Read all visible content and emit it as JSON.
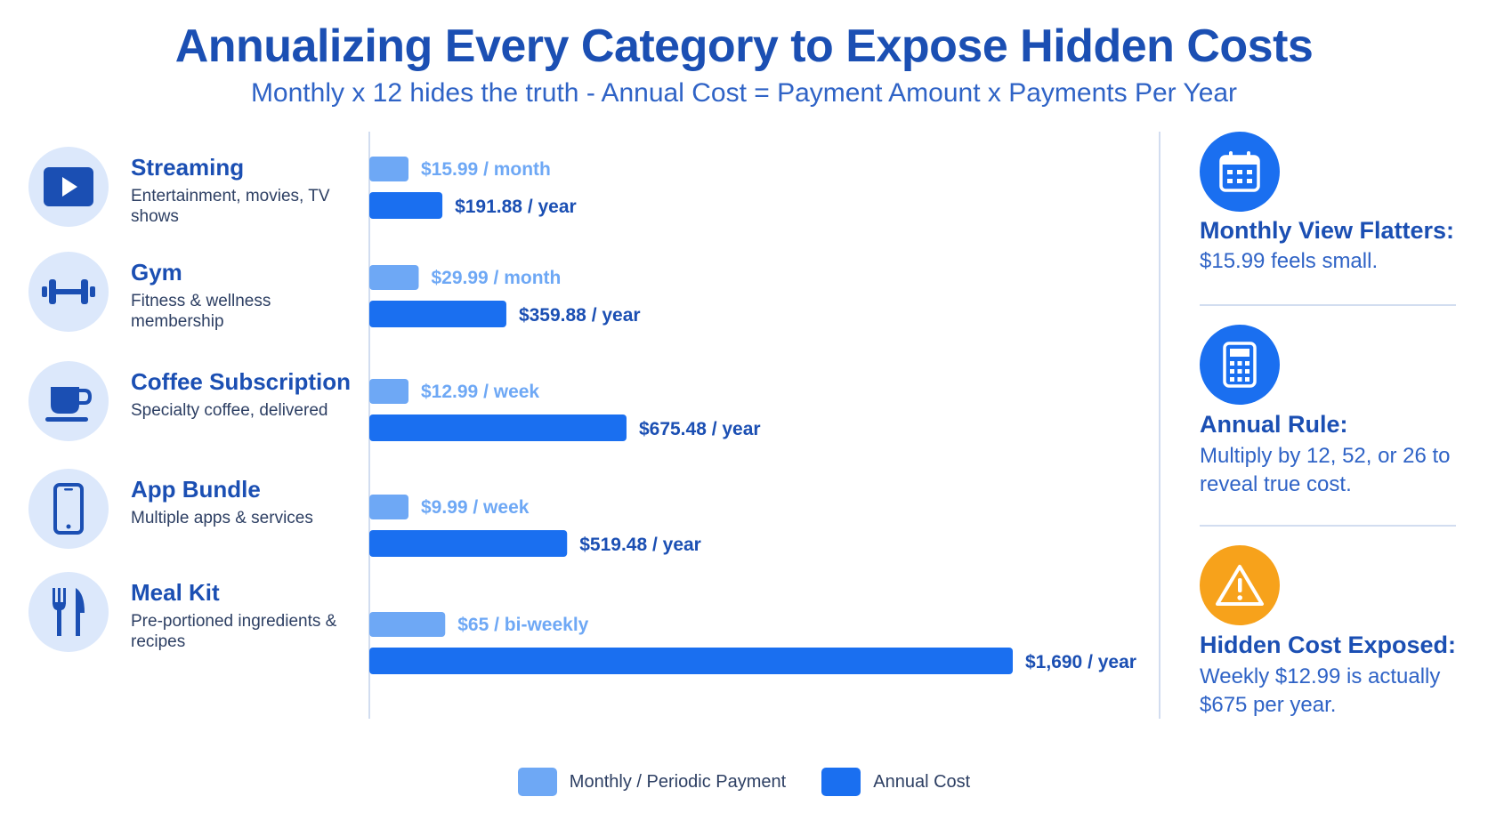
{
  "title": "Annualizing Every Category to Expose Hidden Costs",
  "subtitle": "Monthly x 12 hides the truth - Annual Cost = Payment Amount x Payments Per Year",
  "colors": {
    "periodic": "#6ea8f5",
    "annual": "#1a6ff0",
    "heading": "#1b4fb3",
    "accent_icon": "#1a6ff0",
    "warning": "#f7a21b"
  },
  "categories": [
    {
      "name": "Streaming",
      "desc": "Entertainment, movies, TV shows",
      "icon": "play-icon"
    },
    {
      "name": "Gym",
      "desc": "Fitness & wellness membership",
      "icon": "dumbbell-icon"
    },
    {
      "name": "Coffee Subscription",
      "desc": "Specialty coffee, delivered",
      "icon": "coffee-cup-icon"
    },
    {
      "name": "App Bundle",
      "desc": "Multiple apps & services",
      "icon": "smartphone-icon"
    },
    {
      "name": "Meal Kit",
      "desc": "Pre-portioned ingredients & recipes",
      "icon": "fork-knife-icon"
    }
  ],
  "chart_data": {
    "type": "bar",
    "orientation": "horizontal",
    "title": "Annualizing Every Category to Expose Hidden Costs",
    "categories": [
      "Streaming",
      "Gym",
      "Coffee Subscription",
      "App Bundle",
      "Meal Kit"
    ],
    "series": [
      {
        "name": "Monthly / Periodic Payment",
        "values": [
          15.99,
          29.99,
          12.99,
          9.99,
          65
        ],
        "labels": [
          "$15.99 / month",
          "$29.99 / month",
          "$12.99 / week",
          "$9.99 / week",
          "$65 / bi-weekly"
        ]
      },
      {
        "name": "Annual Cost",
        "values": [
          191.88,
          359.88,
          675.48,
          519.48,
          1690
        ],
        "labels": [
          "$191.88 / year",
          "$359.88 / year",
          "$675.48 / year",
          "$519.48 / year",
          "$1,690 / year"
        ]
      }
    ],
    "legend_position": "bottom-center",
    "grid": false
  },
  "sidebar": [
    {
      "icon": "calendar-icon",
      "title": "Monthly View Flatters:",
      "text": "$15.99 feels small."
    },
    {
      "icon": "calculator-icon",
      "title": "Annual Rule:",
      "text": "Multiply by 12, 52, or 26 to reveal true cost."
    },
    {
      "icon": "warning-icon",
      "title": "Hidden Cost Exposed:",
      "text": "Weekly $12.99 is actually $675 per year."
    }
  ],
  "legend": [
    {
      "label": "Monthly / Periodic Payment"
    },
    {
      "label": "Annual Cost"
    }
  ]
}
